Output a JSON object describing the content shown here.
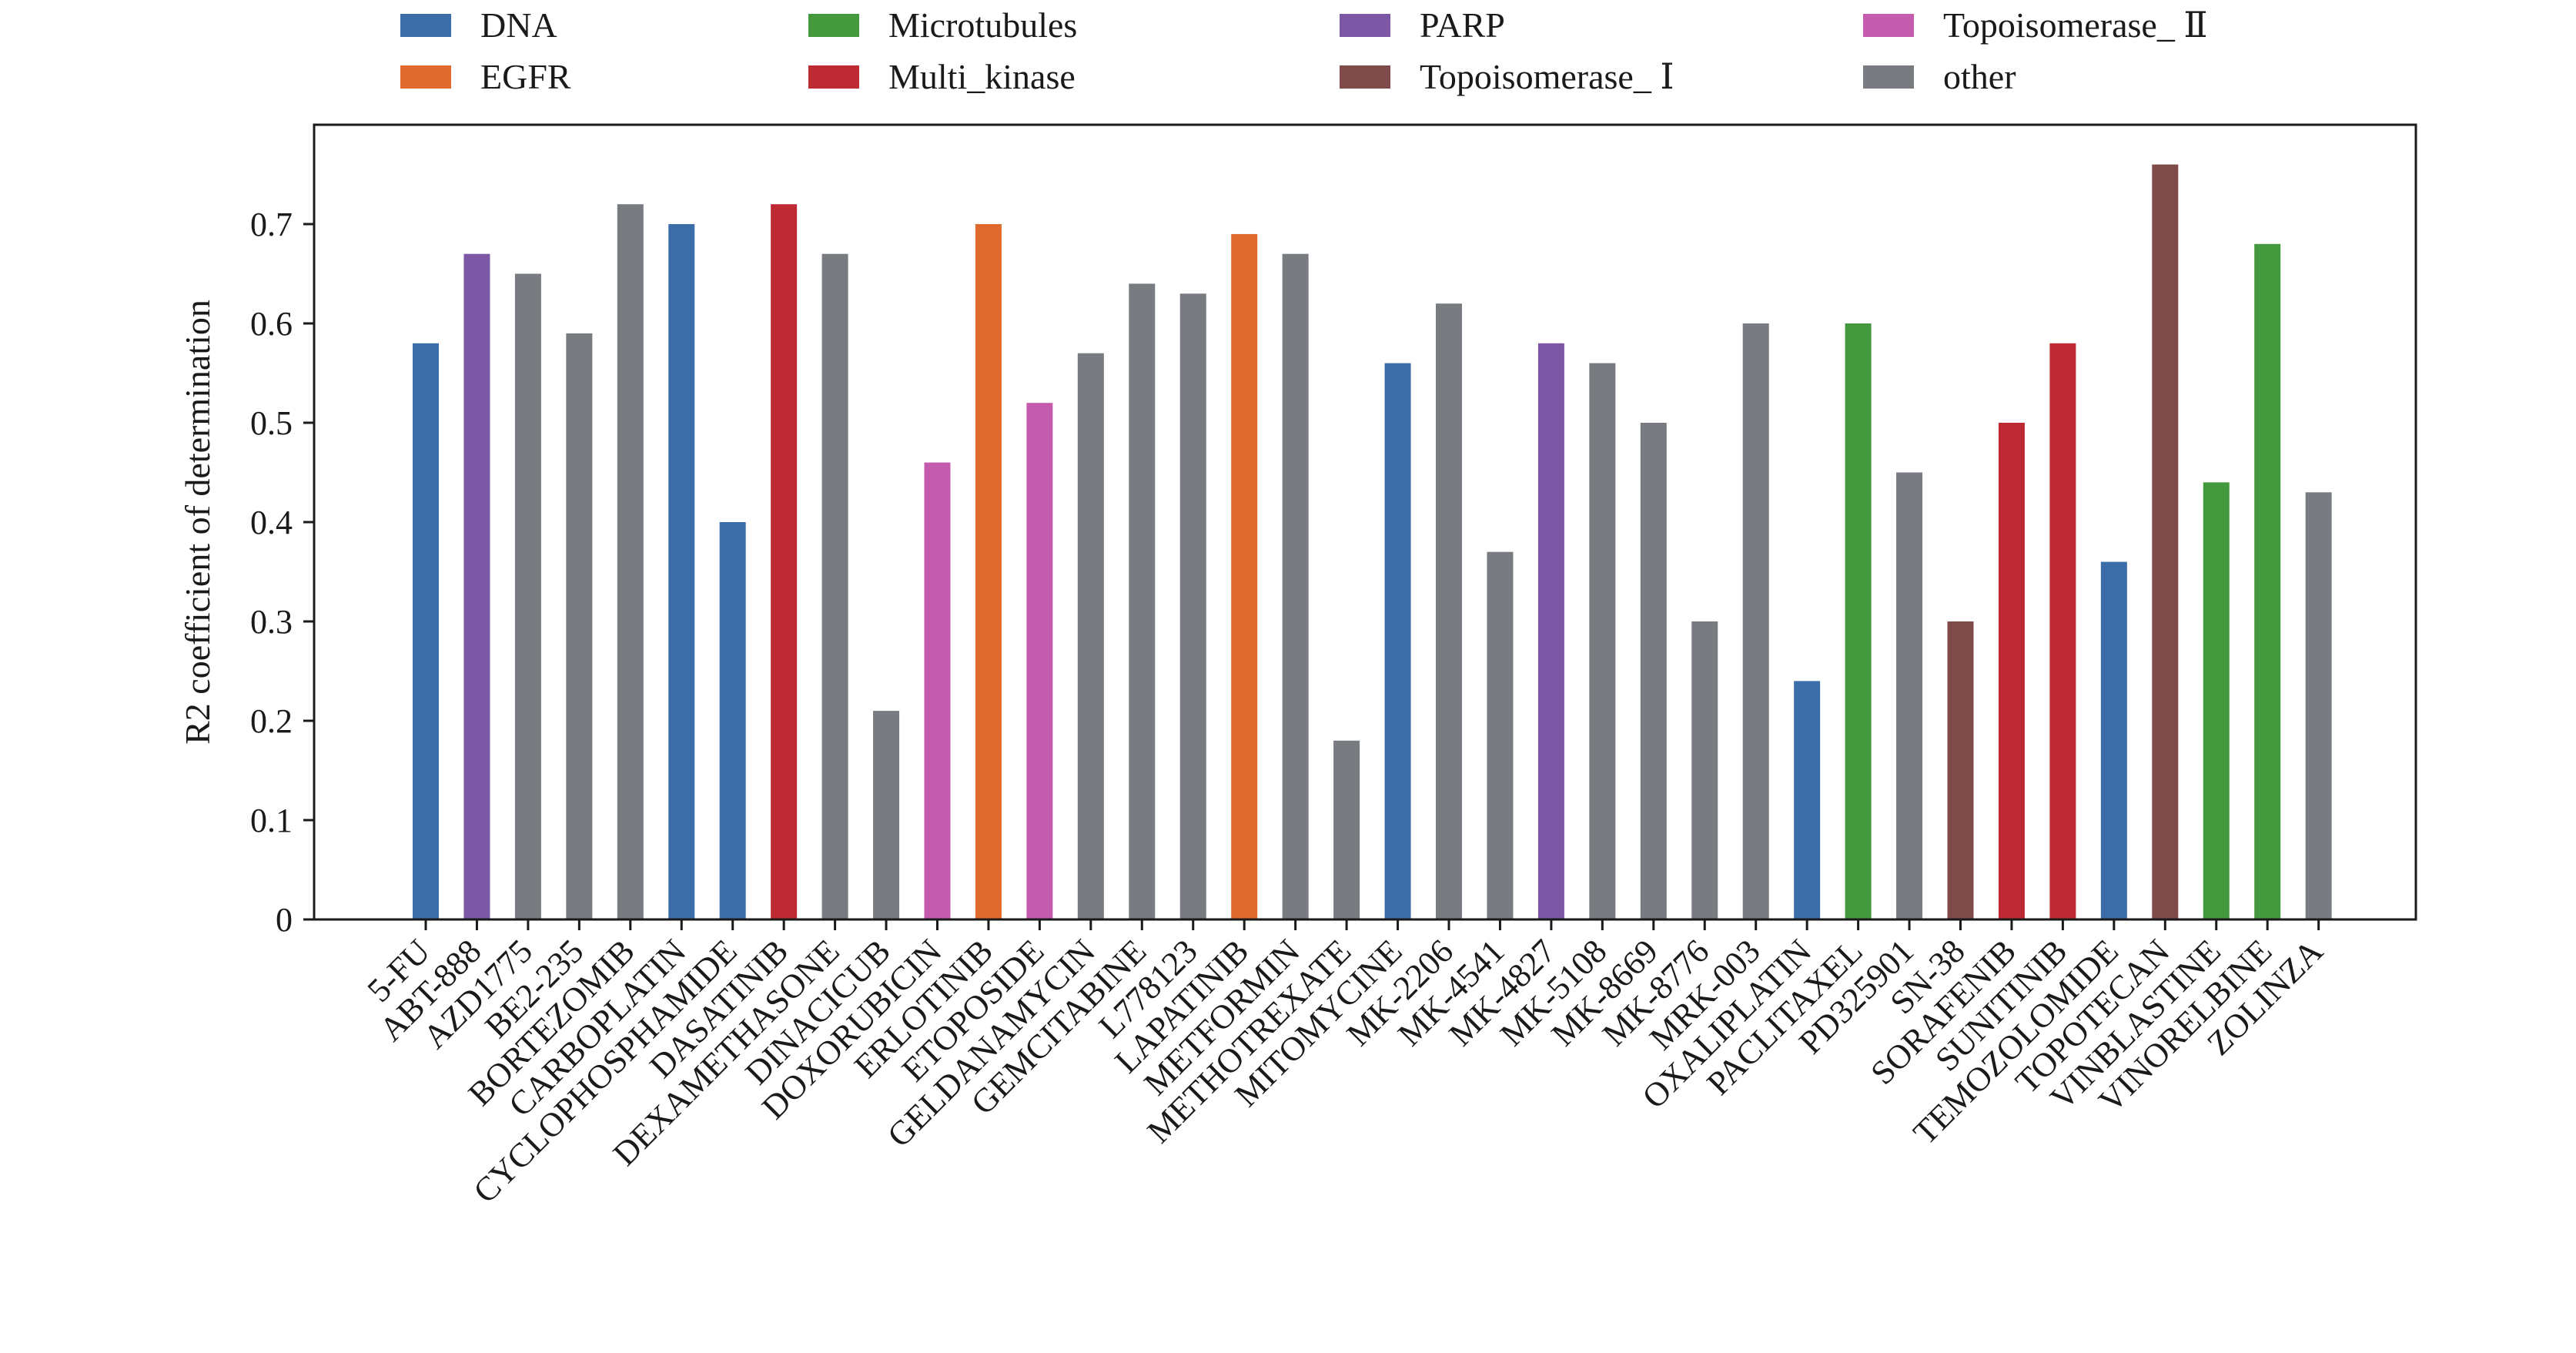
{
  "chart_data": {
    "type": "bar",
    "ylabel": "R2 coefficient of determination",
    "ylim": [
      0,
      0.8
    ],
    "yticks": [
      0,
      0.1,
      0.2,
      0.3,
      0.4,
      0.5,
      0.6,
      0.7
    ],
    "ytick_labels": [
      "0",
      "0.1",
      "0.2",
      "0.3",
      "0.4",
      "0.5",
      "0.6",
      "0.7"
    ],
    "legend_placement": "top",
    "legend": [
      {
        "name": "DNA",
        "color": "#3b6ea8"
      },
      {
        "name": "EGFR",
        "color": "#e0692d"
      },
      {
        "name": "Microtubules",
        "color": "#44993e"
      },
      {
        "name": "Multi_kinase",
        "color": "#bd2a33"
      },
      {
        "name": "PARP",
        "color": "#7c57a6"
      },
      {
        "name": "Topoisomerase_ Ⅰ",
        "color": "#7f4a4a"
      },
      {
        "name": "Topoisomerase_ Ⅱ",
        "color": "#c45bad"
      },
      {
        "name": "other",
        "color": "#787b80"
      }
    ],
    "categories": [
      "5-FU",
      "ABT-888",
      "AZD1775",
      "BE2-235",
      "BORTEZOMIB",
      "CARBOPLATIN",
      "CYCLOPHOSPHAMIDE",
      "DASATINIB",
      "DEXAMETHASONE",
      "DINACICUB",
      "DOXORUBICIN",
      "ERLOTINIB",
      "ETOPOSIDE",
      "GELDANAMYCIN",
      "GEMCITABINE",
      "L778123",
      "LAPATINIB",
      "METFORMIN",
      "METHOTREXATE",
      "MITOMYCINE",
      "MK-2206",
      "MK-4541",
      "MK-4827",
      "MK-5108",
      "MK-8669",
      "MK-8776",
      "MRK-003",
      "OXALIPLATIN",
      "PACLITAXEL",
      "PD325901",
      "SN-38",
      "SORAFENIB",
      "SUNITINIB",
      "TEMOZOLOMIDE",
      "TOPOTECAN",
      "VINBLASTINE",
      "VINORELBINE",
      "ZOLINZA"
    ],
    "values": [
      0.58,
      0.67,
      0.65,
      0.59,
      0.72,
      0.7,
      0.4,
      0.72,
      0.67,
      0.21,
      0.46,
      0.7,
      0.52,
      0.57,
      0.64,
      0.63,
      0.69,
      0.67,
      0.18,
      0.56,
      0.62,
      0.37,
      0.58,
      0.56,
      0.5,
      0.3,
      0.6,
      0.24,
      0.6,
      0.45,
      0.3,
      0.5,
      0.58,
      0.36,
      0.76,
      0.44,
      0.68,
      0.43
    ],
    "groups": [
      "DNA",
      "PARP",
      "other",
      "other",
      "other",
      "DNA",
      "DNA",
      "Multi_kinase",
      "other",
      "other",
      "Topoisomerase_ Ⅱ",
      "EGFR",
      "Topoisomerase_ Ⅱ",
      "other",
      "other",
      "other",
      "EGFR",
      "other",
      "other",
      "DNA",
      "other",
      "other",
      "PARP",
      "other",
      "other",
      "other",
      "other",
      "DNA",
      "Microtubules",
      "other",
      "Topoisomerase_ Ⅰ",
      "Multi_kinase",
      "Multi_kinase",
      "DNA",
      "Topoisomerase_ Ⅰ",
      "Microtubules",
      "Microtubules",
      "other"
    ]
  }
}
